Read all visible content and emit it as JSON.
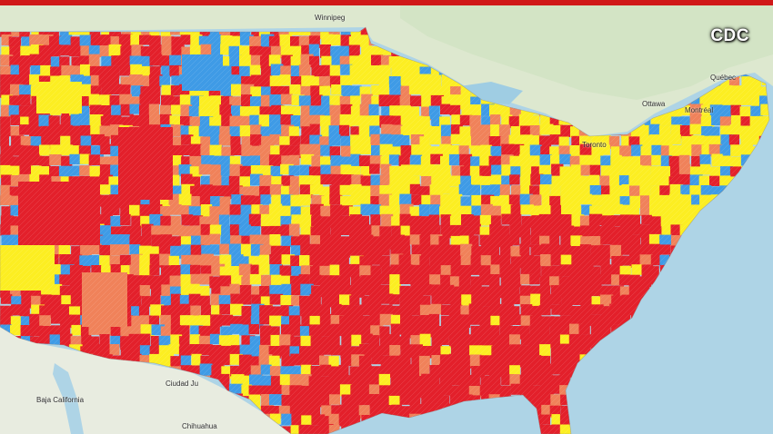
{
  "badge": {
    "source": "CDC"
  },
  "places": {
    "winnipeg": "Winnipeg",
    "quebec": "Québec",
    "ottawa": "Ottawa",
    "montreal": "Montréal",
    "toronto": "Toronto",
    "ciudad": "Ciudad Ju",
    "chihuahua": "Chihuahua",
    "bajacal": "Baja California"
  },
  "colors": {
    "ocean": "#aed4e6",
    "land": "#dde8cf",
    "land_alt": "#cfe2c0",
    "lake": "#9fcde3",
    "red": "#e3202b",
    "orange": "#f0825a",
    "yellow": "#fcee22",
    "blue": "#3f9be6",
    "banner": "#d01818"
  }
}
